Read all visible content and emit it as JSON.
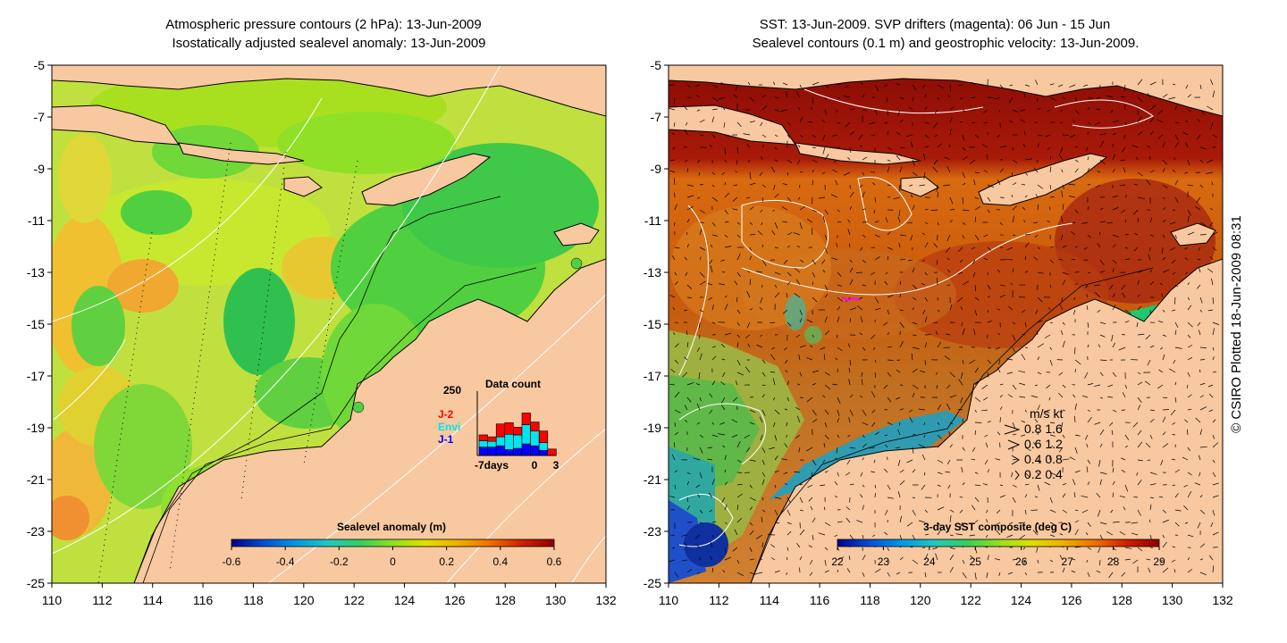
{
  "left_panel": {
    "title_line1": "Atmospheric pressure contours (2 hPa): 13-Jun-2009",
    "title_line2": "Isostatically adjusted sealevel anomaly: 13-Jun-2009",
    "colorbar": {
      "title": "Sealevel anomaly (m)",
      "labels": [
        "-0.6",
        "-0.4",
        "-0.2",
        "0",
        "0.2",
        "0.4",
        "0.6"
      ],
      "colors": [
        "#00008b",
        "#0050d8",
        "#0098e8",
        "#20c8c0",
        "#30d060",
        "#90e020",
        "#e0e000",
        "#f0b000",
        "#f07000",
        "#d02000",
        "#900000"
      ]
    },
    "data_count": {
      "title": "Data count",
      "ymax_label": "250",
      "x_labels": [
        "-7days",
        "0",
        "3"
      ],
      "legend": [
        {
          "label": "J-2",
          "color": "#ff0000"
        },
        {
          "label": "Envi",
          "color": "#00e5ee"
        },
        {
          "label": "J-1",
          "color": "#0000ff"
        }
      ],
      "bars": [
        {
          "j1": 0.13,
          "envi": 0.1,
          "j2": 0.09
        },
        {
          "j1": 0.13,
          "envi": 0.09,
          "j2": 0.07
        },
        {
          "j1": 0.15,
          "envi": 0.14,
          "j2": 0.2
        },
        {
          "j1": 0.09,
          "envi": 0.24,
          "j2": 0.18
        },
        {
          "j1": 0.11,
          "envi": 0.21,
          "j2": 0.12
        },
        {
          "j1": 0.18,
          "envi": 0.3,
          "j2": 0.18
        },
        {
          "j1": 0.15,
          "envi": 0.23,
          "j2": 0.14
        },
        {
          "j1": 0.08,
          "envi": 0.12,
          "j2": 0.18
        },
        {
          "j1": 0.0,
          "envi": 0.0,
          "j2": 0.1
        }
      ]
    }
  },
  "right_panel": {
    "title_line1": "SST: 13-Jun-2009. SVP drifters (magenta): 06 Jun - 15 Jun",
    "title_line2": "Sealevel contours (0.1 m) and geostrophic velocity: 13-Jun-2009.",
    "colorbar": {
      "title": "3-day SST composite (deg C)",
      "labels": [
        "22",
        "23",
        "24",
        "25",
        "26",
        "27",
        "28",
        "29"
      ],
      "colors": [
        "#00008b",
        "#0050d8",
        "#0098e8",
        "#20c8c0",
        "#30d060",
        "#90e020",
        "#e0e000",
        "#f0b000",
        "#f07000",
        "#d02000",
        "#900000"
      ]
    },
    "velocity_legend": {
      "header": "m/s  kt",
      "rows": [
        "0.8  1.6",
        "0.6  1.2",
        "0.4  0.8",
        "0.2  0.4"
      ]
    }
  },
  "axes": {
    "y_labels": [
      "-5",
      "-7",
      "-9",
      "-11",
      "-13",
      "-15",
      "-17",
      "-19",
      "-21",
      "-23",
      "-25"
    ],
    "x_labels": [
      "110",
      "112",
      "114",
      "116",
      "118",
      "120",
      "122",
      "124",
      "126",
      "128",
      "130",
      "132"
    ]
  },
  "credit": "© CSIRO Plotted 18-Jun-2009 08:31",
  "colors": {
    "land": "#f8c8a0",
    "ocean_base": "#c0e040",
    "sst_base": "#c84808"
  }
}
